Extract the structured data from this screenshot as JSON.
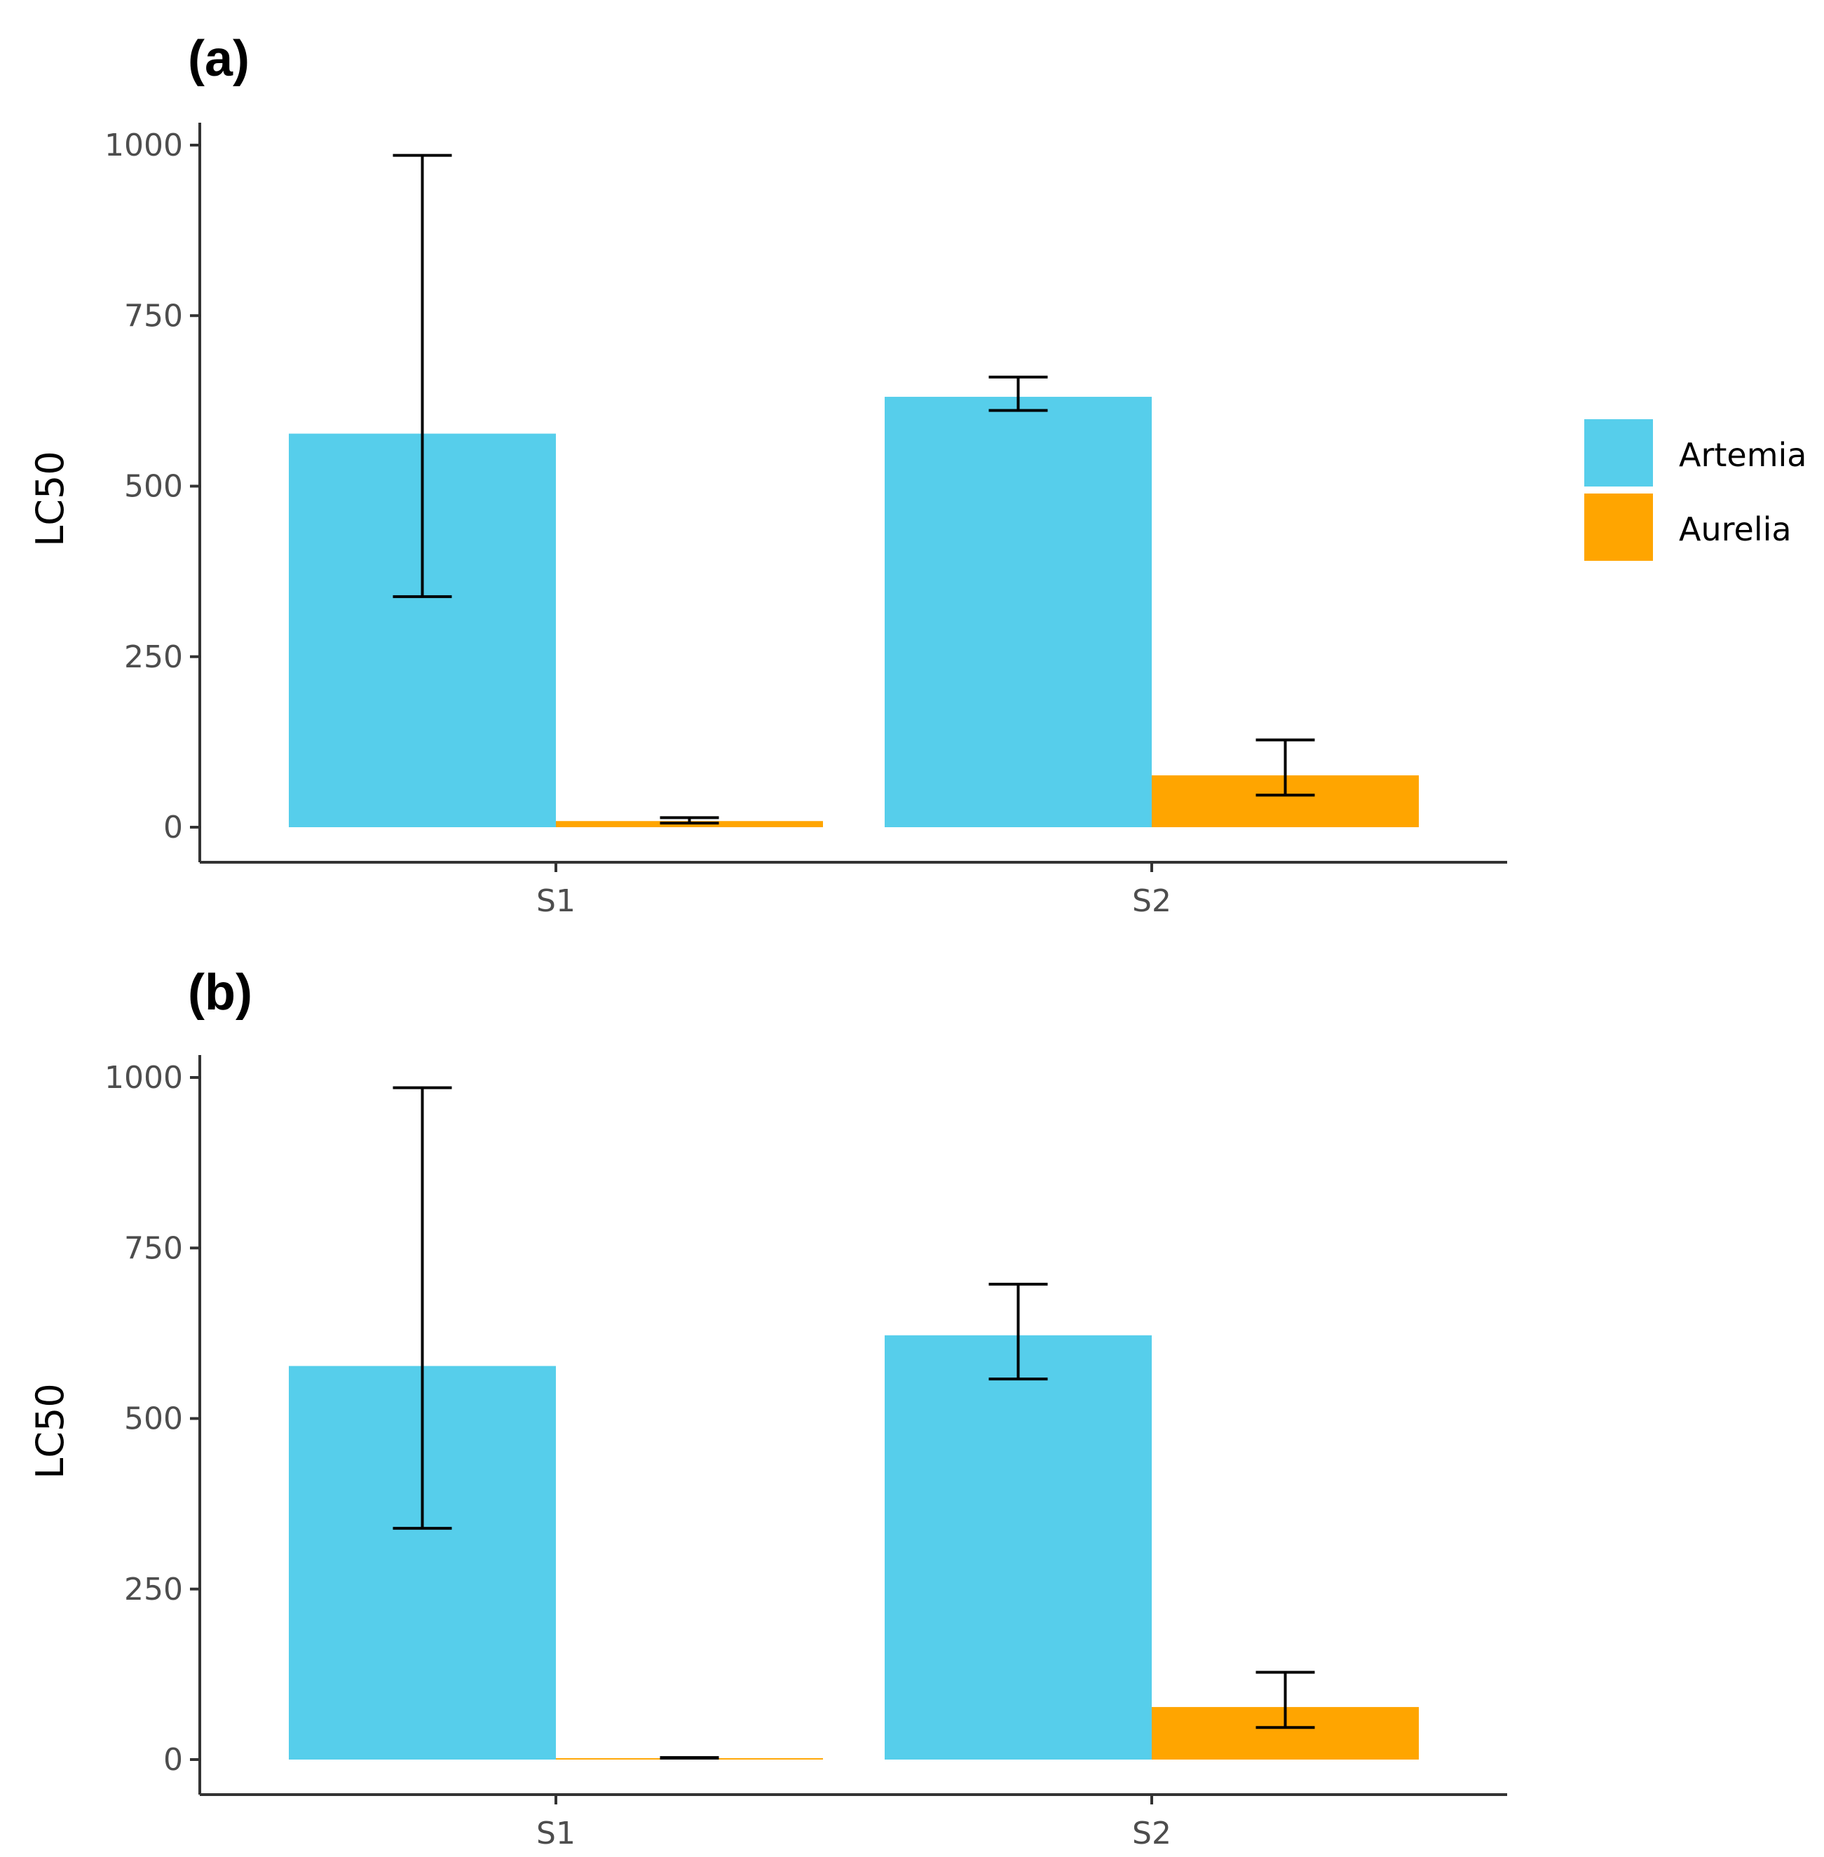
{
  "chart_data": [
    {
      "type": "bar",
      "panel_label": "(a)",
      "categories": [
        "S1",
        "S2"
      ],
      "series": [
        {
          "name": "Artemia",
          "color": "#56CEEB",
          "values": [
            577,
            631
          ],
          "err_low": [
            338,
            611
          ],
          "err_high": [
            985,
            660
          ]
        },
        {
          "name": "Aurelia",
          "color": "#FFA500",
          "values": [
            9,
            76
          ],
          "err_low": [
            6,
            47
          ],
          "err_high": [
            14,
            128
          ]
        }
      ],
      "ylabel": "LC50",
      "xlabel": "",
      "ylim": [
        0,
        1000
      ],
      "yticks": [
        0,
        250,
        500,
        750,
        1000
      ],
      "tick_labels": [
        "0",
        "250",
        "500",
        "750",
        "1000"
      ],
      "legend_position": "right"
    },
    {
      "type": "bar",
      "panel_label": "(b)",
      "categories": [
        "S1",
        "S2"
      ],
      "series": [
        {
          "name": "Artemia",
          "color": "#56CEEB",
          "values": [
            577,
            622
          ],
          "err_low": [
            339,
            558
          ],
          "err_high": [
            985,
            697
          ]
        },
        {
          "name": "Aurelia",
          "color": "#FFA500",
          "values": [
            2,
            77
          ],
          "err_low": [
            2,
            47
          ],
          "err_high": [
            3,
            128
          ]
        }
      ],
      "ylabel": "LC50",
      "xlabel": "",
      "ylim": [
        0,
        1000
      ],
      "yticks": [
        0,
        250,
        500,
        750,
        1000
      ],
      "tick_labels": [
        "0",
        "250",
        "500",
        "750",
        "1000"
      ]
    }
  ],
  "legend": {
    "items": [
      {
        "label": "Artemia",
        "color": "#56CEEB"
      },
      {
        "label": "Aurelia",
        "color": "#FFA500"
      }
    ]
  }
}
